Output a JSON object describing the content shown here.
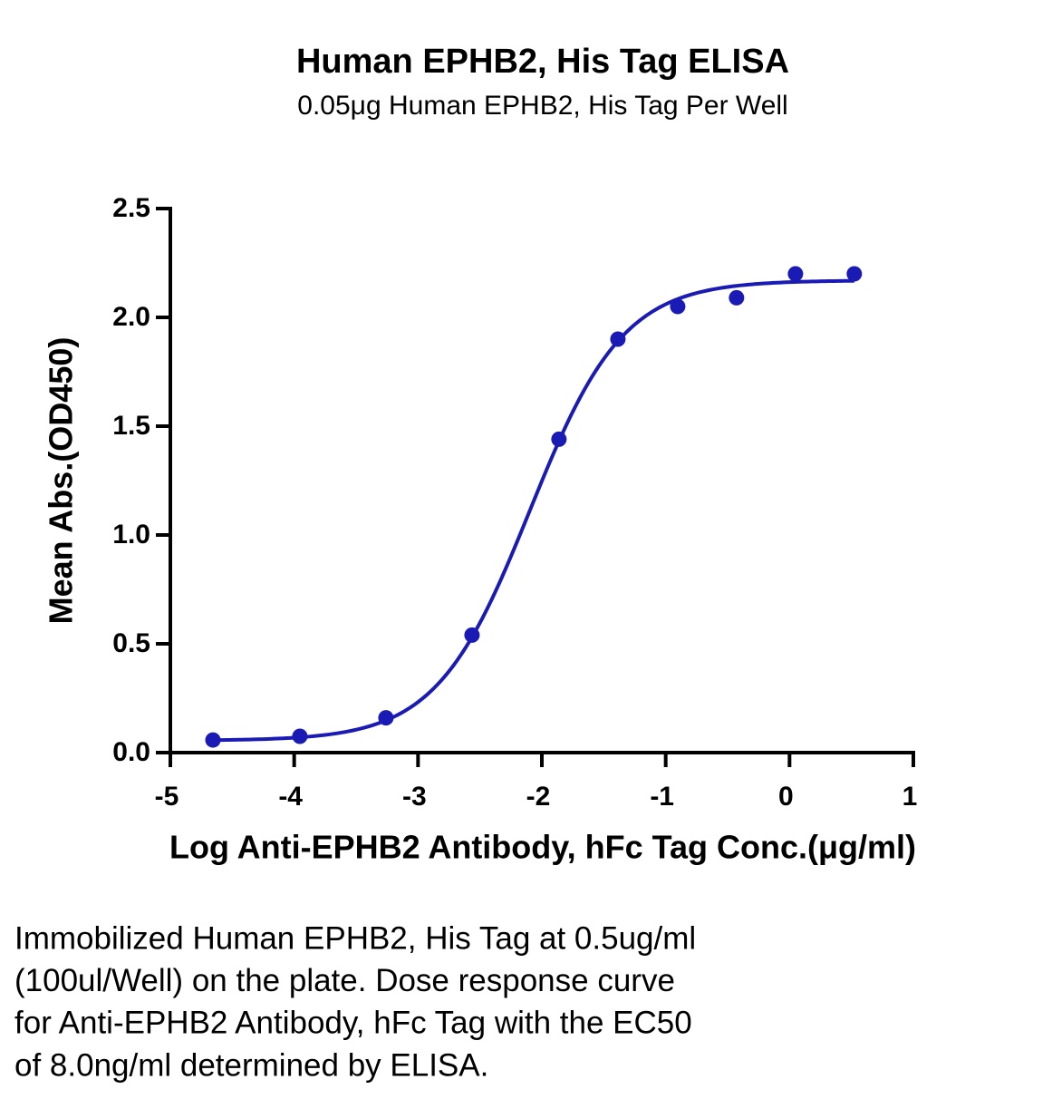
{
  "chart_data": {
    "type": "scatter",
    "title": "Human EPHB2, His Tag ELISA",
    "subtitle": "0.05μg Human EPHB2, His Tag Per Well",
    "x_label": "Log Anti-EPHB2 Antibody, hFc Tag Conc.(μg/ml)",
    "y_label": "Mean Abs.(OD450)",
    "x": [
      -4.656,
      -3.954,
      -3.259,
      -2.564,
      -1.862,
      -1.386,
      -0.903,
      -0.428,
      0.048,
      0.523
    ],
    "values": [
      0.058,
      0.075,
      0.16,
      0.54,
      1.44,
      1.9,
      2.05,
      2.09,
      2.2,
      2.2
    ],
    "color": "#1a1ab4",
    "fit": {
      "bottom": 0.055,
      "top": 2.17,
      "log_ec50": -2.097,
      "hill": 1.15
    },
    "xlim": [
      -5,
      1
    ],
    "xticks": [
      -5,
      -4,
      -3,
      -2,
      -1,
      0,
      1
    ],
    "ylim": [
      0,
      2.5
    ],
    "yticks": [
      {
        "value": 0,
        "label": "0.0"
      },
      0.5,
      {
        "value": 1,
        "label": "1.0"
      },
      1.5,
      {
        "value": 2,
        "label": "2.0"
      },
      2.5
    ],
    "grid": false,
    "caption": [
      "Immobilized Human EPHB2, His Tag at 0.5ug/ml",
      "(100ul/Well) on the plate. Dose response curve",
      "for Anti-EPHB2 Antibody, hFc Tag with the EC50",
      "of 8.0ng/ml determined by ELISA."
    ]
  }
}
